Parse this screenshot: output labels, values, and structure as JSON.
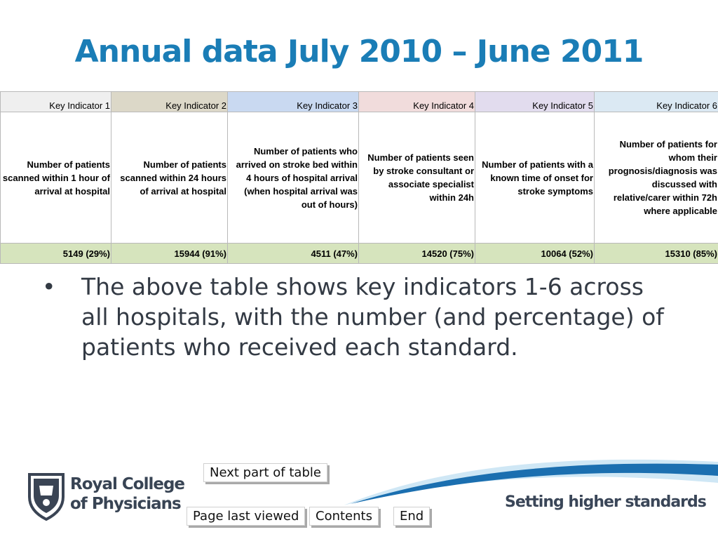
{
  "slide": {
    "title": "Annual data July 2010 – June 2011",
    "bullet": "The above table shows key indicators 1-6 across all hospitals, with the number (and percentage) of patients who received each standard.",
    "tagline": "Setting higher standards"
  },
  "table": {
    "columns": [
      {
        "header": "Key Indicator 1",
        "header_color": "#efefef",
        "description": "Number of patients scanned within 1 hour of arrival at hospital",
        "value": "5149 (29%)"
      },
      {
        "header": "Key Indicator 2",
        "header_color": "#dcd8c8",
        "description": "Number of patients scanned within 24 hours of arrival at hospital",
        "value": "15944 (91%)"
      },
      {
        "header": "Key Indicator 3",
        "header_color": "#c9d9f1",
        "description": "Number of patients who arrived on stroke bed within 4 hours of hospital arrival (when hospital arrival was out of hours)",
        "value": "4511 (47%)"
      },
      {
        "header": "Key Indicator 4",
        "header_color": "#f1dcdc",
        "description": "Number of patients seen by stroke consultant or associate specialist within 24h",
        "value": "14520 (75%)"
      },
      {
        "header": "Key Indicator 5",
        "header_color": "#e2dcee",
        "description": "Number of patients with a known time of onset for stroke symptoms",
        "value": "10064 (52%)"
      },
      {
        "header": "Key Indicator 6",
        "header_color": "#dbe9f3",
        "description": "Number of patients for whom their prognosis/diagnosis was discussed with relative/carer within 72h where applicable",
        "value": "15310 (85%)"
      }
    ]
  },
  "nav": {
    "next": "Next part of table",
    "last_viewed": "Page last viewed",
    "contents": "Contents",
    "end": "End"
  },
  "logo": {
    "line1": "Royal College",
    "line2": "of Physicians",
    "icon": "rcp-crest-icon"
  },
  "colors": {
    "title": "#1a7db6",
    "value_row": "#d6e4bd",
    "swoosh_dark": "#1b6fb0",
    "swoosh_light": "#bfe0f2"
  }
}
